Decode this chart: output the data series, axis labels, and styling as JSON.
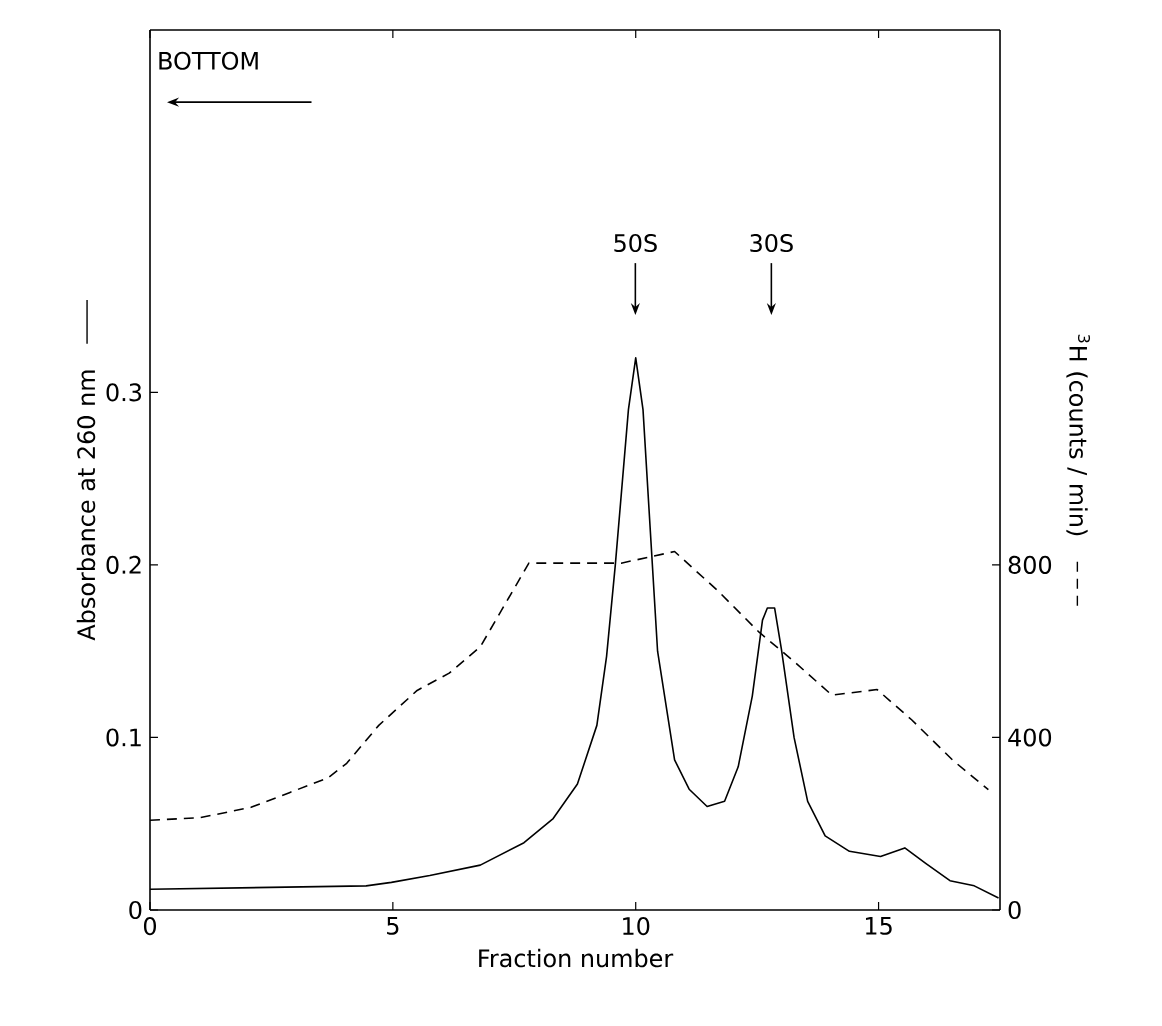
{
  "chart_data": {
    "type": "line",
    "xlabel": "Fraction number",
    "ylabel": "Absorbance  at  260 nm",
    "y2label": "$^{3}$H (counts / min)",
    "xlim": [
      0,
      17.5
    ],
    "xticks": [
      0,
      5,
      10,
      15
    ],
    "ylim": [
      0,
      0.51
    ],
    "yticks": [
      0,
      0.1,
      0.2,
      0.3
    ],
    "y2lim": [
      0,
      2040
    ],
    "y2ticks": [
      0,
      400,
      800
    ],
    "annotations": [
      "BOTTOM",
      "50S",
      "30S"
    ],
    "series": [
      {
        "color": "#000000",
        "line_style": "solid",
        "x": [
          0,
          4.45,
          4.97,
          5.76,
          6.8,
          7.7,
          8.3,
          8.8,
          9.2,
          9.4,
          9.58,
          9.85,
          10.0,
          10.15,
          10.45,
          10.8,
          11.1,
          11.47,
          11.83,
          12.11,
          12.4,
          12.61,
          12.71,
          12.86,
          13.0,
          13.26,
          13.54,
          13.9,
          14.4,
          15.04,
          15.54,
          15.97,
          16.47,
          16.97,
          17.47
        ],
        "values": [
          0.012,
          0.014,
          0.016,
          0.02,
          0.026,
          0.039,
          0.053,
          0.073,
          0.107,
          0.147,
          0.2,
          0.29,
          0.32,
          0.29,
          0.15,
          0.087,
          0.07,
          0.06,
          0.063,
          0.083,
          0.124,
          0.168,
          0.175,
          0.175,
          0.151,
          0.1,
          0.063,
          0.043,
          0.034,
          0.031,
          0.036,
          0.027,
          0.017,
          0.014,
          0.007
        ]
      },
      {
        "color": "#000000",
        "line_style": "dashed",
        "axis": "y2",
        "x": [
          0,
          1.03,
          2.08,
          2.87,
          3.66,
          4.05,
          4.71,
          5.5,
          6.16,
          6.8,
          7.8,
          8.66,
          9.7,
          10.8,
          11.7,
          12.54,
          13.26,
          14.04,
          14.97,
          15.68,
          16.54,
          17.26
        ],
        "values": [
          208,
          214,
          238,
          272,
          306,
          340,
          428,
          509,
          549,
          610,
          804,
          804,
          804,
          831,
          739,
          644,
          576,
          498,
          511,
          441,
          346,
          279
        ]
      }
    ]
  }
}
